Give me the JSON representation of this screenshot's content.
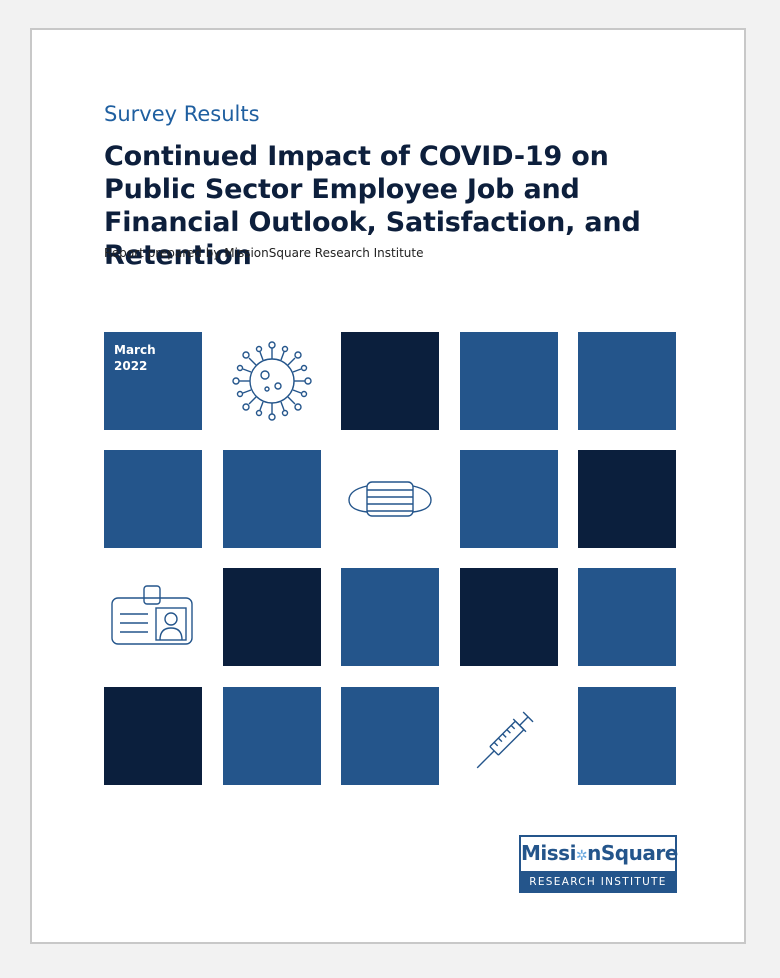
{
  "cover": {
    "eyebrow": "Survey Results",
    "title": "Continued Impact of COVID-19 on Public Sector Employee Job and Financial Outlook, Satisfaction, and Retention",
    "byline": "Report prepared by MissionSquare Research Institute",
    "date_month": "March",
    "date_year": "2022"
  },
  "logo": {
    "name_part1": "Missi",
    "name_dot": "✲",
    "name_part2": "nSquare",
    "subtitle": "RESEARCH INSTITUTE"
  },
  "colors": {
    "accent": "#1f5fa0",
    "tile_mid": "#24558b",
    "tile_dark": "#0b1f3d",
    "title": "#0d1f3c"
  },
  "icons": [
    "virus-icon",
    "face-mask-icon",
    "id-badge-icon",
    "syringe-icon"
  ]
}
